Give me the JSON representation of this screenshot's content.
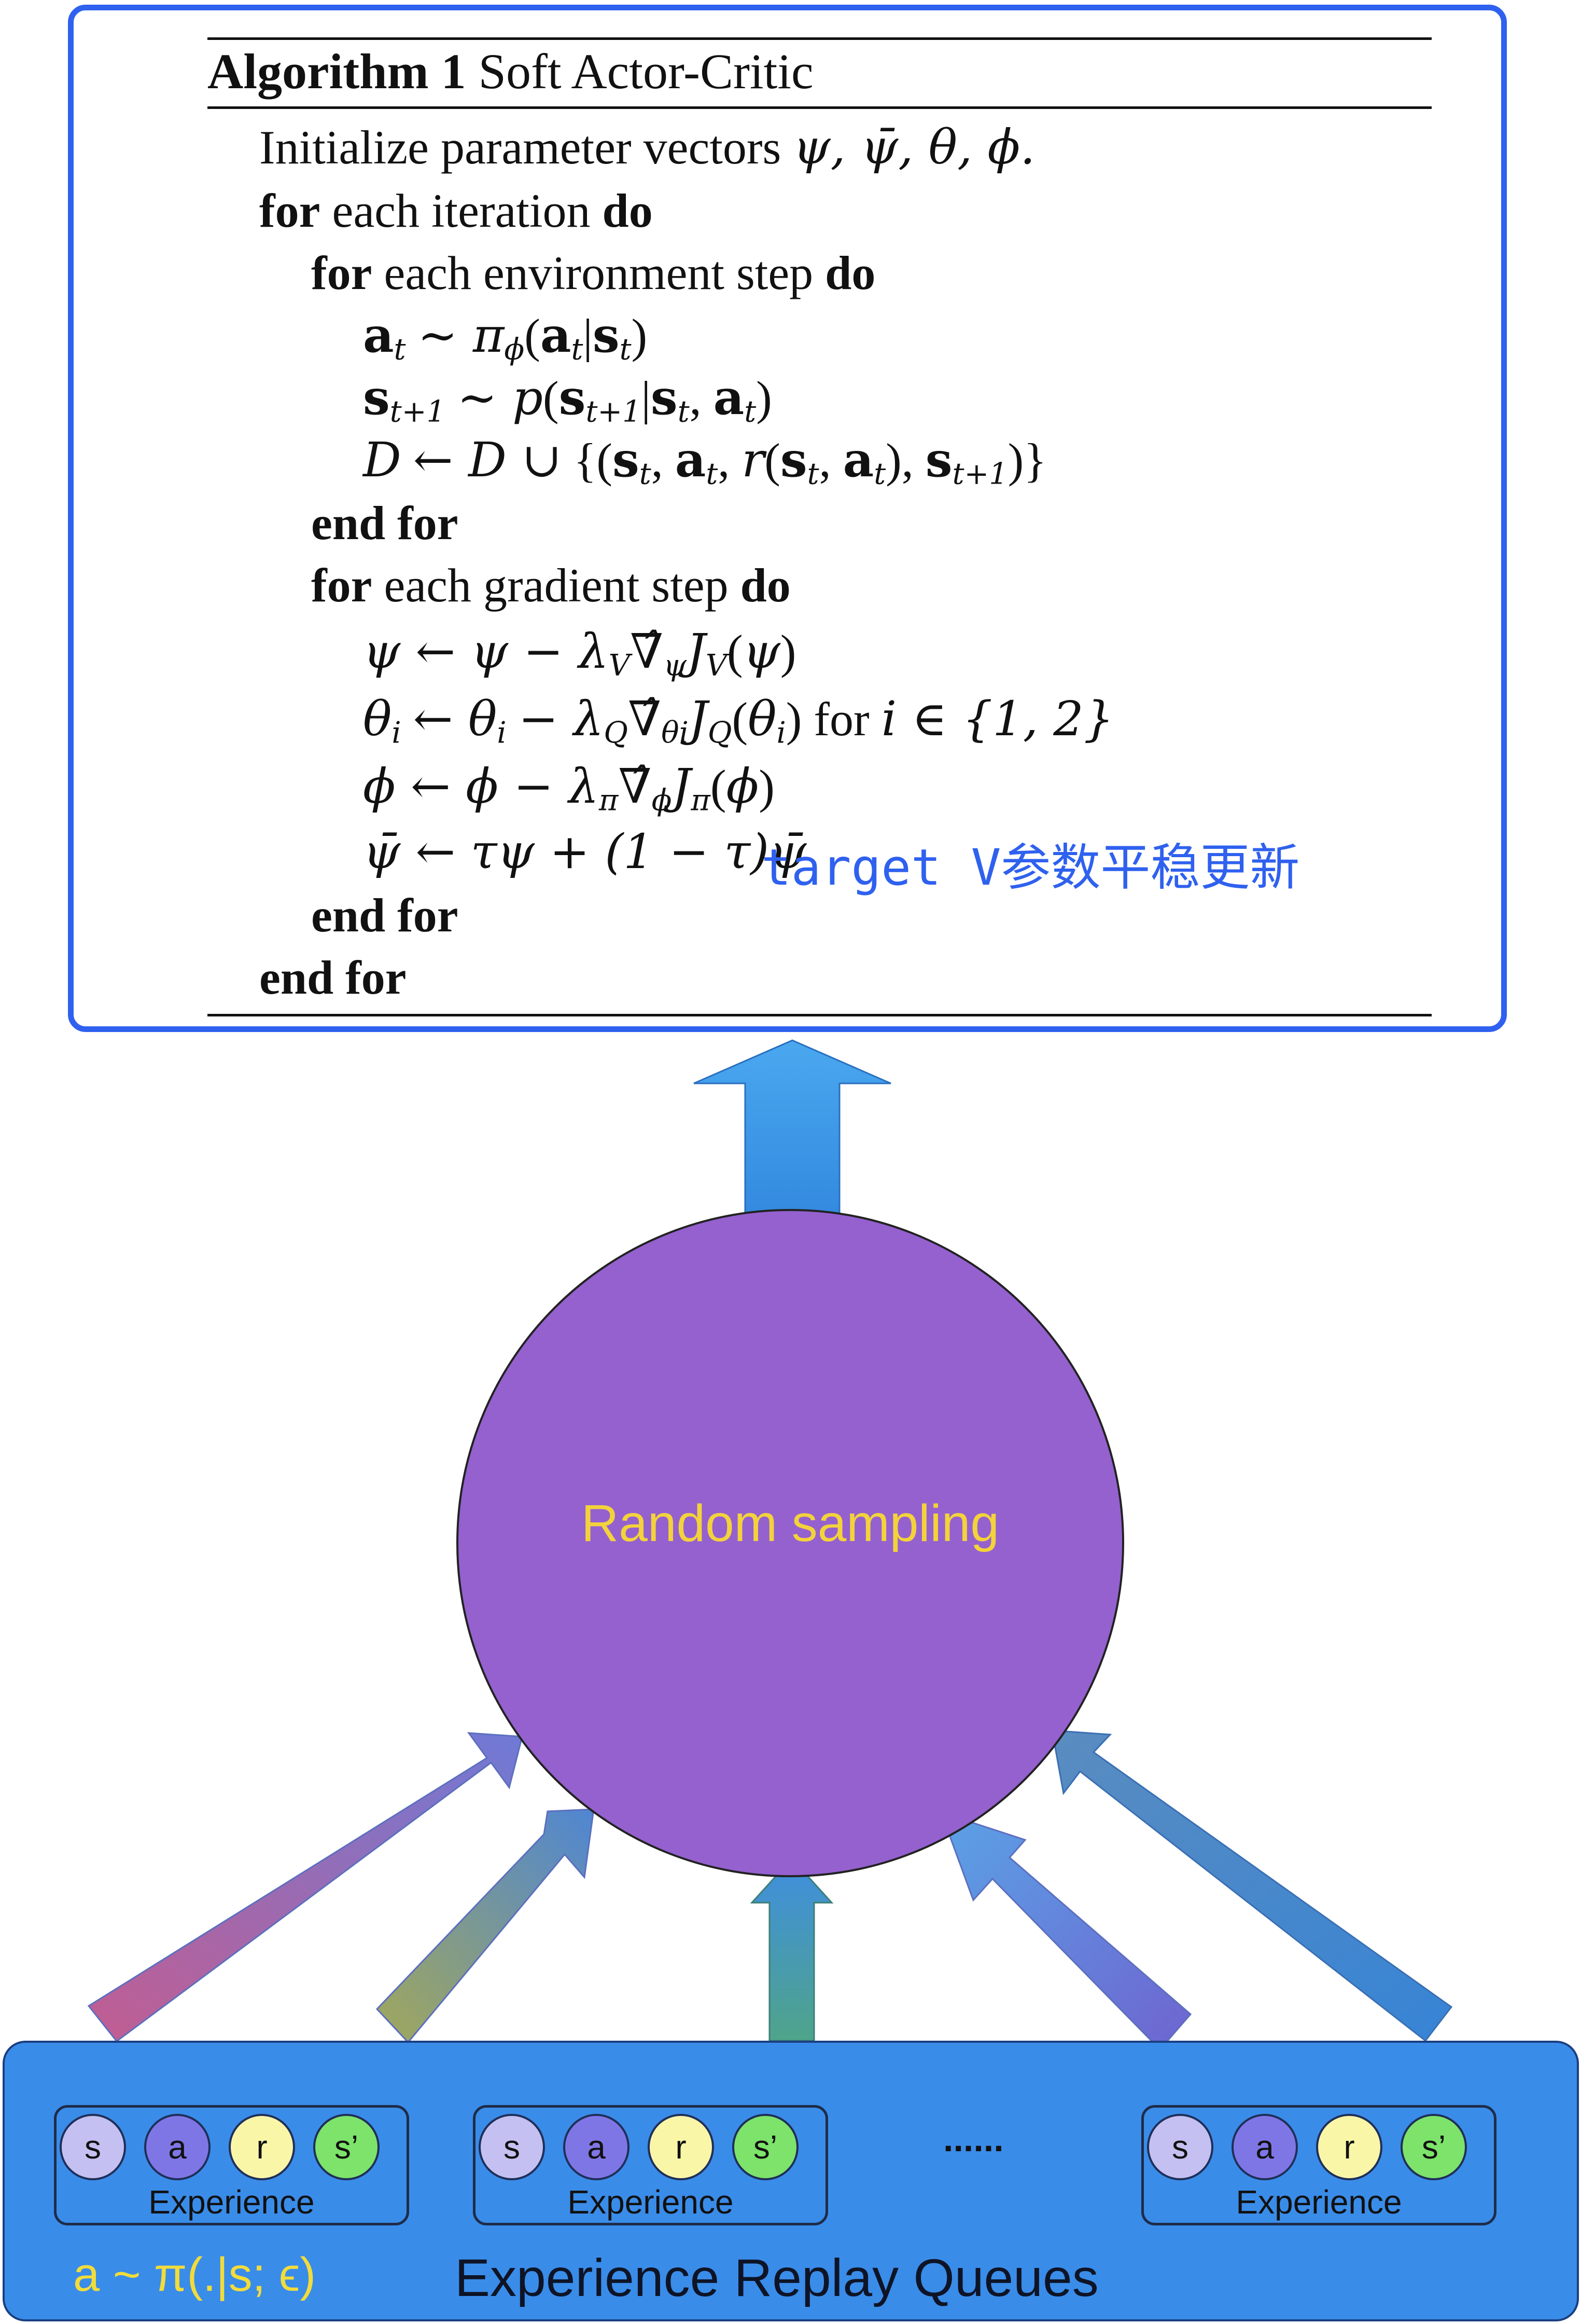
{
  "algorithm": {
    "label": "Algorithm 1",
    "title": "Soft Actor-Critic",
    "init_prefix": "Initialize parameter vectors",
    "init_vars": "ψ, ψ̄, θ, ϕ.",
    "for_kw": "for",
    "do_kw": "do",
    "end_for_kw": "end for",
    "iteration_text": "each iteration",
    "env_step_text": "each environment step",
    "grad_step_text": "each gradient step",
    "action_sample": "∼ π",
    "env_transition": "∼ p",
    "buffer_update": "← D ∪",
    "psi_update": "ψ ← ψ − λ",
    "theta_update": "θ",
    "theta_for": "for",
    "theta_set": "i ∈ {1, 2}",
    "phi_update": "ϕ ← ϕ − λ",
    "target_update": "ψ̄ ← τψ + (1 − τ)ψ̄"
  },
  "annotation": "target V参数平稳更新",
  "sampler": {
    "label": "Random sampling"
  },
  "queue": {
    "title": "Experience Replay Queues",
    "policy": "a ~ π(.|s; ϵ)",
    "ellipsis": "......",
    "experience_label": "Experience",
    "tokens": [
      "s",
      "a",
      "r",
      "s’"
    ]
  },
  "colors": {
    "box_border": "#2f61ef",
    "circle_fill": "#9461cf",
    "circle_text": "#f3d23b",
    "panel_fill": "#3a8ce9",
    "token_s": "#c4c0f2",
    "token_a": "#7f76e6",
    "token_r": "#faf6a8",
    "token_s2": "#7de36a"
  }
}
